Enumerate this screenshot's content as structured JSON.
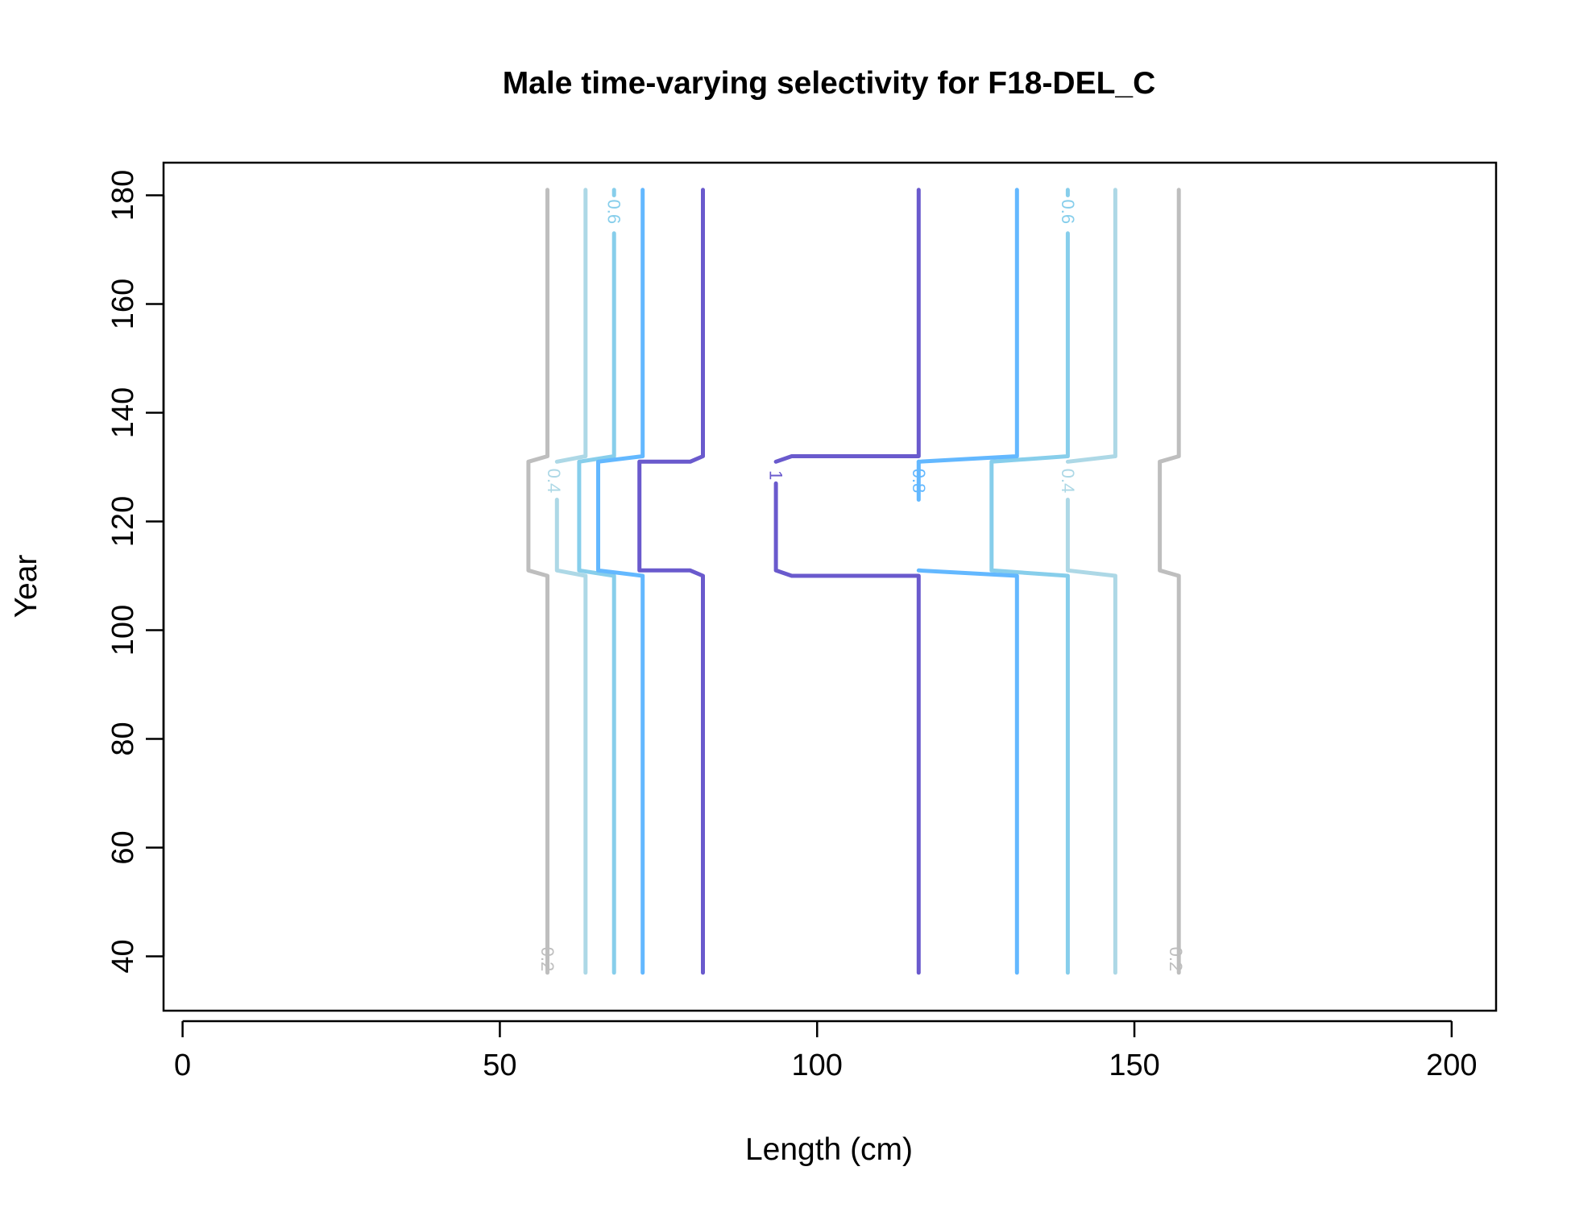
{
  "chart_data": {
    "type": "contour",
    "title": "Male time-varying selectivity for F18-DEL_C",
    "xlabel": "Length (cm)",
    "ylabel": "Year",
    "xlim": [
      -3,
      207
    ],
    "ylim": [
      30,
      186
    ],
    "x_ticks": [
      0,
      50,
      100,
      150,
      200
    ],
    "y_ticks": [
      40,
      60,
      80,
      100,
      120,
      140,
      160,
      180
    ],
    "grid": false,
    "legend": "none",
    "contours": [
      {
        "level": "0.2",
        "color": "#BEBEBE",
        "branches": [
          [
            [
              57.5,
              37
            ],
            [
              57.5,
              110
            ],
            [
              54.5,
              111
            ],
            [
              54.5,
              131
            ],
            [
              57.5,
              132
            ],
            [
              57.5,
              181
            ]
          ],
          [
            [
              157,
              37
            ],
            [
              157,
              110
            ],
            [
              154,
              111
            ],
            [
              154,
              131
            ],
            [
              157,
              132
            ],
            [
              157,
              181
            ]
          ]
        ],
        "labels": [
          [
            57.5,
            39.5
          ],
          [
            156.5,
            39.5
          ]
        ]
      },
      {
        "level": "0.4",
        "color": "#ADD8E6",
        "branches": [
          [
            [
              63.5,
              37
            ],
            [
              63.5,
              110
            ],
            [
              59,
              111
            ],
            [
              59,
              124
            ]
          ],
          [
            [
              59,
              131
            ],
            [
              63.5,
              132
            ],
            [
              63.5,
              181
            ]
          ],
          [
            [
              147,
              37
            ],
            [
              147,
              110
            ],
            [
              139.5,
              111
            ],
            [
              139.5,
              124
            ]
          ],
          [
            [
              139.5,
              131
            ],
            [
              147,
              132
            ],
            [
              147,
              181
            ]
          ]
        ],
        "labels": [
          [
            58.5,
            127.5
          ],
          [
            139.5,
            127.5
          ]
        ]
      },
      {
        "level": "0.6",
        "color": "#87CEEB",
        "branches": [
          [
            [
              68,
              37
            ],
            [
              68,
              110
            ],
            [
              62.5,
              111
            ],
            [
              62.5,
              131
            ],
            [
              68,
              132
            ],
            [
              68,
              173
            ]
          ],
          [
            [
              68,
              180
            ],
            [
              68,
              181
            ]
          ],
          [
            [
              139.5,
              37
            ],
            [
              139.5,
              110
            ],
            [
              127.5,
              111
            ],
            [
              127.5,
              131
            ],
            [
              139.5,
              132
            ],
            [
              139.5,
              173
            ]
          ],
          [
            [
              139.5,
              180
            ],
            [
              139.5,
              181
            ]
          ]
        ],
        "labels": [
          [
            68,
            177
          ],
          [
            139.5,
            177
          ]
        ]
      },
      {
        "level": "0.8",
        "color": "#63B8FF",
        "branches": [
          [
            [
              72.5,
              37
            ],
            [
              72.5,
              110
            ],
            [
              65.5,
              111
            ],
            [
              65.5,
              131
            ],
            [
              72.5,
              132
            ],
            [
              72.5,
              181
            ]
          ],
          [
            [
              131.5,
              37
            ],
            [
              131.5,
              110
            ],
            [
              116,
              111
            ]
          ],
          [
            [
              116,
              131
            ],
            [
              131.5,
              132
            ],
            [
              131.5,
              181
            ]
          ],
          [
            [
              116,
              124
            ],
            [
              116,
              131
            ]
          ]
        ],
        "labels": [
          [
            116,
            127.5
          ]
        ]
      },
      {
        "level": "1",
        "color": "#6A5ACD",
        "branches": [
          [
            [
              82,
              37
            ],
            [
              82,
              110
            ],
            [
              80,
              111
            ],
            [
              72,
              111
            ],
            [
              72,
              131
            ],
            [
              80,
              131
            ],
            [
              82,
              132
            ],
            [
              82,
              181
            ]
          ],
          [
            [
              116,
              37
            ],
            [
              116,
              110
            ],
            [
              96,
              110
            ],
            [
              93.5,
              111
            ],
            [
              93.5,
              127
            ]
          ],
          [
            [
              93.5,
              131
            ],
            [
              96,
              132
            ],
            [
              116,
              132
            ],
            [
              116,
              181
            ]
          ]
        ],
        "labels": [
          [
            93.5,
            128.5
          ]
        ]
      }
    ]
  }
}
